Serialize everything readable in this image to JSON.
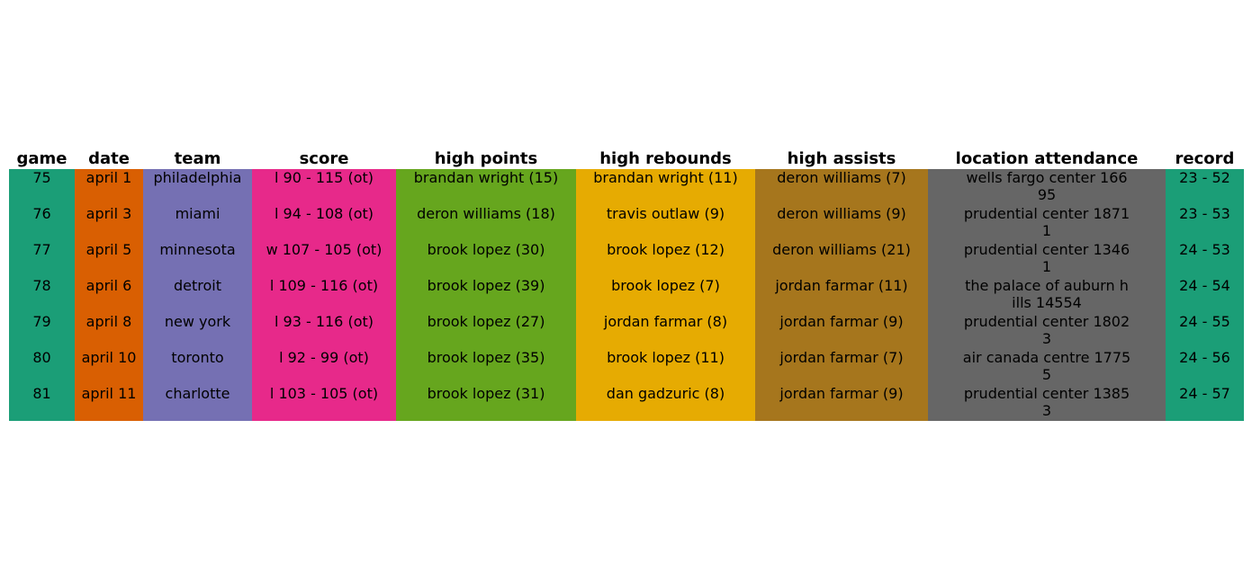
{
  "chart_data": {
    "type": "table",
    "columns": [
      {
        "key": "game",
        "label": "game",
        "color": "#1b9e77"
      },
      {
        "key": "date",
        "label": "date",
        "color": "#d95f02"
      },
      {
        "key": "team",
        "label": "team",
        "color": "#7570b3"
      },
      {
        "key": "score",
        "label": "score",
        "color": "#e7298a"
      },
      {
        "key": "high_points",
        "label": "high points",
        "color": "#66a61e"
      },
      {
        "key": "high_rebounds",
        "label": "high rebounds",
        "color": "#e6ab02"
      },
      {
        "key": "high_assists",
        "label": "high assists",
        "color": "#a6761d"
      },
      {
        "key": "location_attendance",
        "label": "location attendance",
        "color": "#666666"
      },
      {
        "key": "record",
        "label": "record",
        "color": "#1b9e77"
      }
    ],
    "rows": [
      [
        "75",
        "april 1",
        "philadelphia",
        "l 90 - 115 (ot)",
        "brandan wright (15)",
        "brandan wright (11)",
        "deron williams (7)",
        "wells fargo center 166\n95",
        "23 - 52"
      ],
      [
        "76",
        "april 3",
        "miami",
        "l 94 - 108 (ot)",
        "deron williams (18)",
        "travis outlaw (9)",
        "deron williams (9)",
        "prudential center 1871\n1",
        "23 - 53"
      ],
      [
        "77",
        "april 5",
        "minnesota",
        "w 107 - 105 (ot)",
        "brook lopez (30)",
        "brook lopez (12)",
        "deron williams (21)",
        "prudential center 1346\n1",
        "24 - 53"
      ],
      [
        "78",
        "april 6",
        "detroit",
        "l 109 - 116 (ot)",
        "brook lopez (39)",
        "brook lopez (7)",
        "jordan farmar (11)",
        "the palace of auburn h\nills 14554",
        "24 - 54"
      ],
      [
        "79",
        "april 8",
        "new york",
        "l 93 - 116 (ot)",
        "brook lopez (27)",
        "jordan farmar (8)",
        "jordan farmar (9)",
        "prudential center 1802\n3",
        "24 - 55"
      ],
      [
        "80",
        "april 10",
        "toronto",
        "l 92 - 99 (ot)",
        "brook lopez (35)",
        "brook lopez (11)",
        "jordan farmar (7)",
        "air canada centre 1775\n5",
        "24 - 56"
      ],
      [
        "81",
        "april 11",
        "charlotte",
        "l 103 - 105 (ot)",
        "brook lopez (31)",
        "dan gadzuric (8)",
        "jordan farmar (9)",
        "prudential center 1385\n3",
        "24 - 57"
      ]
    ]
  }
}
